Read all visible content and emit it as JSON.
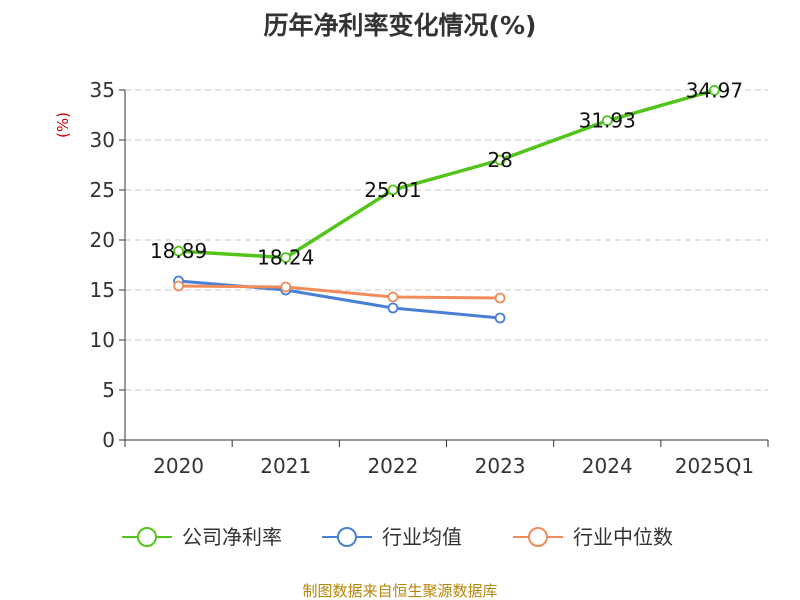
{
  "chart_data": {
    "type": "line",
    "title": "历年净利率变化情况(%)",
    "ylabel": "(%)",
    "categories": [
      "2020",
      "2021",
      "2022",
      "2023",
      "2024",
      "2025Q1"
    ],
    "ylim": [
      0,
      35
    ],
    "yticks": [
      0,
      5,
      10,
      15,
      20,
      25,
      30,
      35
    ],
    "grid": true,
    "legend_position": "bottom",
    "series": [
      {
        "name": "公司净利率",
        "color": "#52c41a",
        "values": [
          18.89,
          18.24,
          25.01,
          28,
          31.93,
          34.97
        ],
        "labels": [
          "18.89",
          "18.24",
          "25.01",
          "28",
          "31.93",
          "34.97"
        ]
      },
      {
        "name": "行业均值",
        "color": "#4a7fd6",
        "values": [
          15.9,
          15.0,
          13.2,
          12.2,
          null,
          null
        ]
      },
      {
        "name": "行业中位数",
        "color": "#f08c5a",
        "values": [
          15.4,
          15.3,
          14.3,
          14.2,
          null,
          null
        ]
      }
    ]
  },
  "footer": "制图数据来自恒生聚源数据库"
}
